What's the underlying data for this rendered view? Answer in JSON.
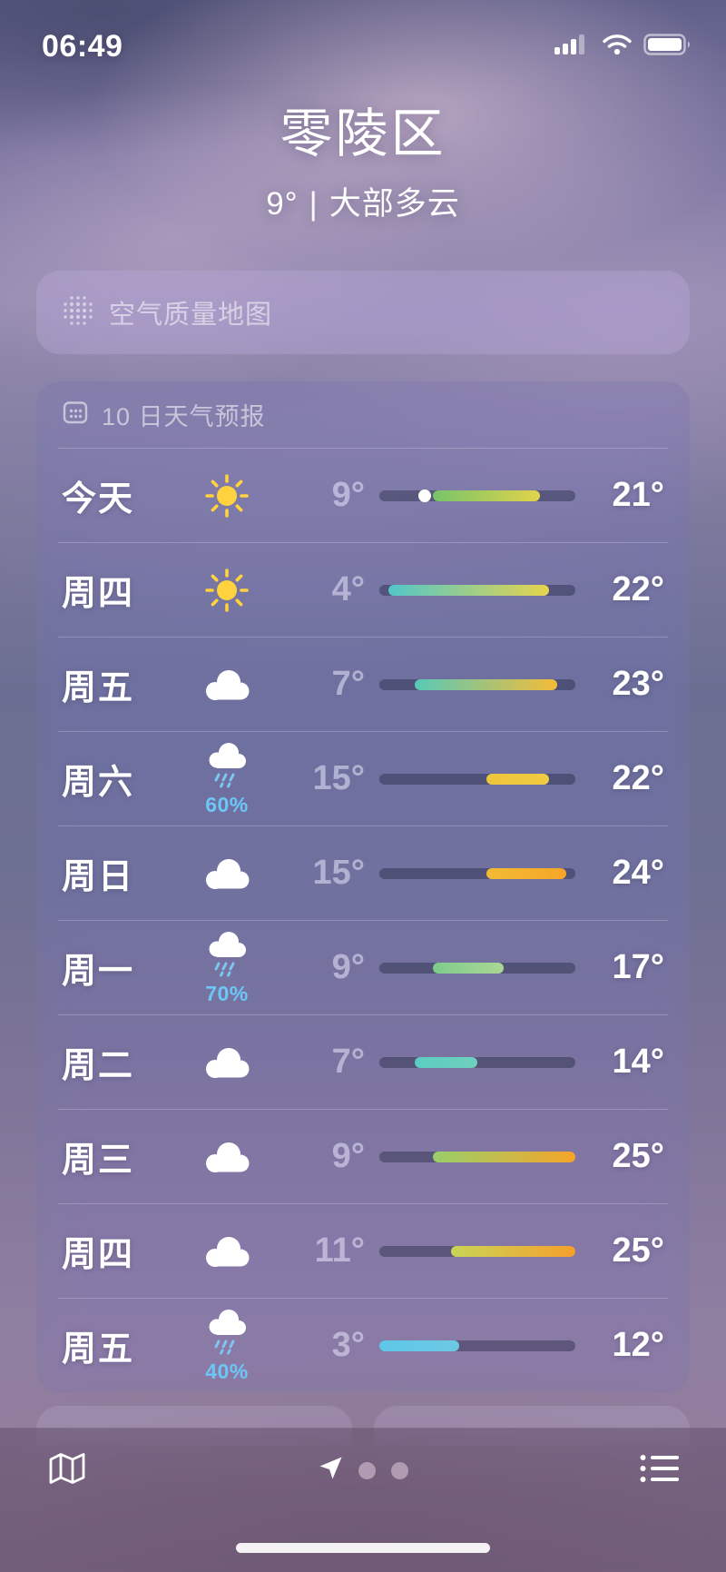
{
  "status_bar": {
    "time": "06:49",
    "icons": [
      "cellular-signal",
      "wifi",
      "battery"
    ]
  },
  "header": {
    "location": "零陵区",
    "current_temp": "9°",
    "divider": "|",
    "condition": "大部多云"
  },
  "air_quality": {
    "label": "空气质量地图",
    "icon": "aqi-dots"
  },
  "forecast": {
    "title": "10 日天气预报",
    "icon": "calendar",
    "global_min": 3,
    "global_max": 25,
    "days": [
      {
        "day": "今天",
        "icon": "sun",
        "precip": null,
        "low": 9,
        "high": 21,
        "low_label": "9°",
        "high_label": "21°",
        "current": 9,
        "fill_from": "#76c46a",
        "fill_to": "#e2d44a"
      },
      {
        "day": "周四",
        "icon": "sun",
        "precip": null,
        "low": 4,
        "high": 22,
        "low_label": "4°",
        "high_label": "22°",
        "current": null,
        "fill_from": "#52c6c9",
        "fill_to": "#e6d44c"
      },
      {
        "day": "周五",
        "icon": "cloud",
        "precip": null,
        "low": 7,
        "high": 23,
        "low_label": "7°",
        "high_label": "23°",
        "current": null,
        "fill_from": "#58c9b7",
        "fill_to": "#f4bc38"
      },
      {
        "day": "周六",
        "icon": "rain",
        "precip": "60%",
        "low": 15,
        "high": 22,
        "low_label": "15°",
        "high_label": "22°",
        "current": null,
        "fill_from": "#edc63c",
        "fill_to": "#f0ca42"
      },
      {
        "day": "周日",
        "icon": "cloud",
        "precip": null,
        "low": 15,
        "high": 24,
        "low_label": "15°",
        "high_label": "24°",
        "current": null,
        "fill_from": "#f2bb36",
        "fill_to": "#f6a528"
      },
      {
        "day": "周一",
        "icon": "rain",
        "precip": "70%",
        "low": 9,
        "high": 17,
        "low_label": "9°",
        "high_label": "17°",
        "current": null,
        "fill_from": "#7ecb8c",
        "fill_to": "#abd794"
      },
      {
        "day": "周二",
        "icon": "cloud",
        "precip": null,
        "low": 7,
        "high": 14,
        "low_label": "7°",
        "high_label": "14°",
        "current": null,
        "fill_from": "#5acdc2",
        "fill_to": "#6fd0bd"
      },
      {
        "day": "周三",
        "icon": "cloud",
        "precip": null,
        "low": 9,
        "high": 25,
        "low_label": "9°",
        "high_label": "25°",
        "current": null,
        "fill_from": "#99cf6b",
        "fill_to": "#f6a52a"
      },
      {
        "day": "周四",
        "icon": "cloud",
        "precip": null,
        "low": 11,
        "high": 25,
        "low_label": "11°",
        "high_label": "25°",
        "current": null,
        "fill_from": "#c9d457",
        "fill_to": "#f6a02c"
      },
      {
        "day": "周五",
        "icon": "rain",
        "precip": "40%",
        "low": 3,
        "high": 12,
        "low_label": "3°",
        "high_label": "12°",
        "current": null,
        "fill_from": "#5ec7e8",
        "fill_to": "#6cc9e3"
      }
    ]
  },
  "toolbar": {
    "icons": [
      "map",
      "location-arrow",
      "page-dot",
      "page-dot",
      "list"
    ]
  }
}
